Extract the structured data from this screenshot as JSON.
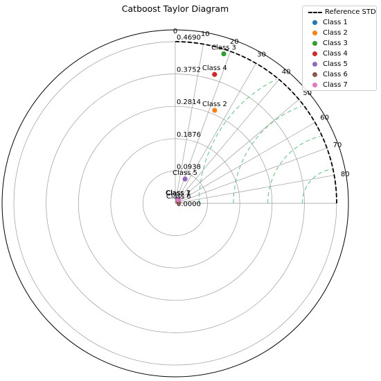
{
  "chart_data": {
    "type": "scatter",
    "subtype": "taylor_diagram",
    "title": "Catboost Taylor Diagram",
    "angle_ticks": [
      "0",
      "10",
      "20",
      "30",
      "40",
      "50",
      "60",
      "70",
      "80"
    ],
    "radial_ticks": [
      "0.0000",
      "0.0938",
      "0.1876",
      "0.2814",
      "0.3752",
      "0.4690"
    ],
    "r_max": 0.469,
    "reference_std": 0.469,
    "legend": {
      "placement": "top-right",
      "entries": [
        {
          "name": "Reference STD",
          "color": "#000000",
          "style": "dashed-line"
        },
        {
          "name": "Class 1",
          "color": "#1f77b4",
          "style": "dot"
        },
        {
          "name": "Class 2",
          "color": "#ff7f0e",
          "style": "dot"
        },
        {
          "name": "Class 3",
          "color": "#2ca02c",
          "style": "dot"
        },
        {
          "name": "Class 4",
          "color": "#d62728",
          "style": "dot"
        },
        {
          "name": "Class 5",
          "color": "#9467bd",
          "style": "dot"
        },
        {
          "name": "Class 6",
          "color": "#8c564b",
          "style": "dot"
        },
        {
          "name": "Class 7",
          "color": "#e377c2",
          "style": "dot"
        }
      ]
    },
    "series": [
      {
        "name": "Class 1",
        "angle_deg": 34,
        "std": 0.014,
        "color": "#1f77b4"
      },
      {
        "name": "Class 2",
        "angle_deg": 23,
        "std": 0.293,
        "color": "#ff7f0e"
      },
      {
        "name": "Class 3",
        "angle_deg": 18,
        "std": 0.456,
        "color": "#2ca02c"
      },
      {
        "name": "Class 4",
        "angle_deg": 17,
        "std": 0.391,
        "color": "#d62728"
      },
      {
        "name": "Class 5",
        "angle_deg": 22,
        "std": 0.076,
        "color": "#9467bd"
      },
      {
        "name": "Class 6",
        "angle_deg": 76,
        "std": 0.01,
        "color": "#8c564b"
      },
      {
        "name": "Class 7",
        "angle_deg": 40,
        "std": 0.014,
        "color": "#e377c2"
      }
    ]
  }
}
